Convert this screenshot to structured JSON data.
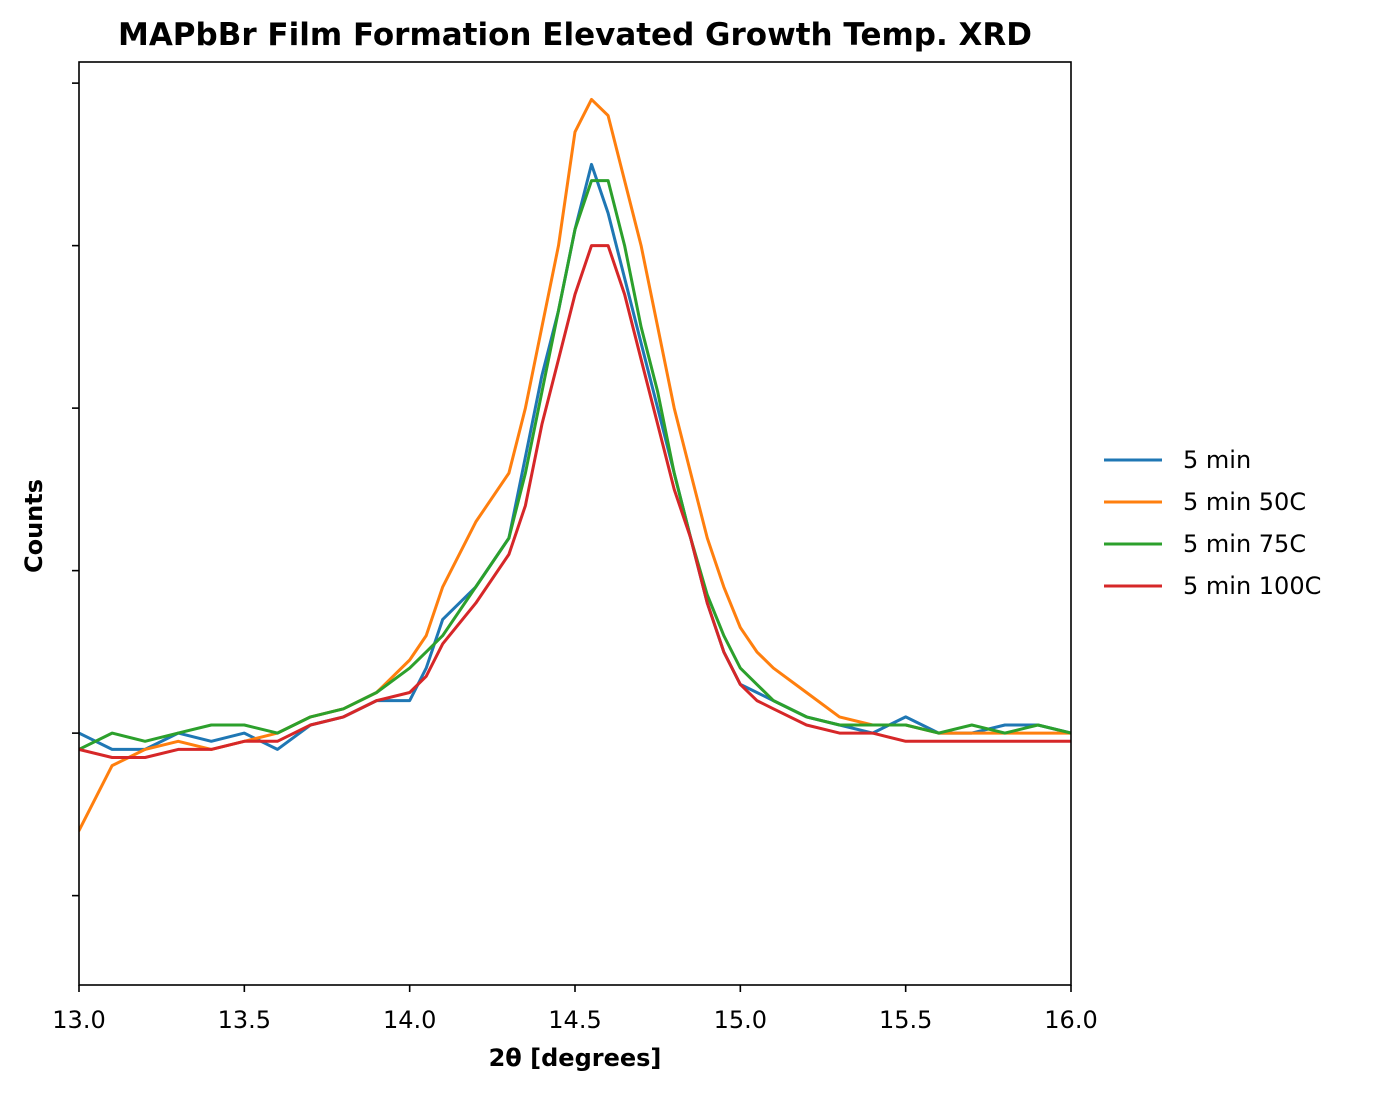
{
  "chart_data": {
    "type": "line",
    "title": "MAPbBr Film Formation Elevated Growth Temp. XRD",
    "xlabel": "2θ [degrees]",
    "ylabel": "Counts",
    "xlim": [
      13.0,
      16.0
    ],
    "ylim": [
      -5.5,
      51.3
    ],
    "x_ticks": [
      "13.0",
      "13.5",
      "14.0",
      "14.5",
      "15.0",
      "15.5",
      "16.0"
    ],
    "y_ticks_labeled": false,
    "grid": false,
    "legend_position": "outside-right",
    "series": [
      {
        "name": "5 min",
        "color": "#1f77b4",
        "x": [
          13.0,
          13.1,
          13.2,
          13.3,
          13.4,
          13.5,
          13.6,
          13.7,
          13.8,
          13.9,
          14.0,
          14.05,
          14.1,
          14.2,
          14.3,
          14.35,
          14.4,
          14.45,
          14.5,
          14.55,
          14.6,
          14.65,
          14.7,
          14.75,
          14.8,
          14.85,
          14.9,
          14.95,
          15.0,
          15.05,
          15.1,
          15.2,
          15.3,
          15.4,
          15.5,
          15.6,
          15.7,
          15.8,
          15.9,
          16.0
        ],
        "y": [
          10,
          9,
          9,
          10,
          9.5,
          10,
          9,
          10.5,
          11,
          12,
          12,
          14,
          17,
          19,
          22,
          27,
          32,
          36,
          41,
          45,
          42,
          38,
          34,
          30,
          26,
          22,
          18,
          15,
          13,
          12.5,
          12,
          11,
          10.5,
          10,
          11,
          10,
          10,
          10.5,
          10.5,
          10
        ]
      },
      {
        "name": "5 min 50C",
        "color": "#ff7f0e",
        "x": [
          13.0,
          13.1,
          13.2,
          13.3,
          13.4,
          13.5,
          13.6,
          13.7,
          13.8,
          13.9,
          14.0,
          14.05,
          14.1,
          14.2,
          14.3,
          14.35,
          14.4,
          14.45,
          14.5,
          14.55,
          14.6,
          14.65,
          14.7,
          14.75,
          14.8,
          14.85,
          14.9,
          14.95,
          15.0,
          15.05,
          15.1,
          15.2,
          15.3,
          15.4,
          15.5,
          15.6,
          15.7,
          15.8,
          15.9,
          16.0
        ],
        "y": [
          4,
          8,
          9,
          9.5,
          9,
          9.5,
          10,
          11,
          11.5,
          12.5,
          14.5,
          16,
          19,
          23,
          26,
          30,
          35,
          40,
          47,
          49,
          48,
          44,
          40,
          35,
          30,
          26,
          22,
          19,
          16.5,
          15,
          14,
          12.5,
          11,
          10.5,
          10.5,
          10,
          10,
          10,
          10,
          10
        ]
      },
      {
        "name": "5 min 75C",
        "color": "#2ca02c",
        "x": [
          13.0,
          13.1,
          13.2,
          13.3,
          13.4,
          13.5,
          13.6,
          13.7,
          13.8,
          13.9,
          14.0,
          14.05,
          14.1,
          14.2,
          14.3,
          14.35,
          14.4,
          14.45,
          14.5,
          14.55,
          14.6,
          14.65,
          14.7,
          14.75,
          14.8,
          14.85,
          14.9,
          14.95,
          15.0,
          15.05,
          15.1,
          15.2,
          15.3,
          15.4,
          15.5,
          15.6,
          15.7,
          15.8,
          15.9,
          16.0
        ],
        "y": [
          9,
          10,
          9.5,
          10,
          10.5,
          10.5,
          10,
          11,
          11.5,
          12.5,
          14,
          15,
          16,
          19,
          22,
          26,
          31,
          36,
          41,
          44,
          44,
          40,
          35,
          31,
          26,
          22,
          18.5,
          16,
          14,
          13,
          12,
          11,
          10.5,
          10.5,
          10.5,
          10,
          10.5,
          10,
          10.5,
          10
        ]
      },
      {
        "name": "5 min 100C",
        "color": "#d62728",
        "x": [
          13.0,
          13.1,
          13.2,
          13.3,
          13.4,
          13.5,
          13.6,
          13.7,
          13.8,
          13.9,
          14.0,
          14.05,
          14.1,
          14.2,
          14.3,
          14.35,
          14.4,
          14.45,
          14.5,
          14.55,
          14.6,
          14.65,
          14.7,
          14.75,
          14.8,
          14.85,
          14.9,
          14.95,
          15.0,
          15.05,
          15.1,
          15.2,
          15.3,
          15.4,
          15.5,
          15.6,
          15.7,
          15.8,
          15.9,
          16.0
        ],
        "y": [
          9,
          8.5,
          8.5,
          9,
          9,
          9.5,
          9.5,
          10.5,
          11,
          12,
          12.5,
          13.5,
          15.5,
          18,
          21,
          24,
          29,
          33,
          37,
          40,
          40,
          37,
          33,
          29,
          25,
          22,
          18,
          15,
          13,
          12,
          11.5,
          10.5,
          10,
          10,
          9.5,
          9.5,
          9.5,
          9.5,
          9.5,
          9.5
        ]
      }
    ]
  }
}
